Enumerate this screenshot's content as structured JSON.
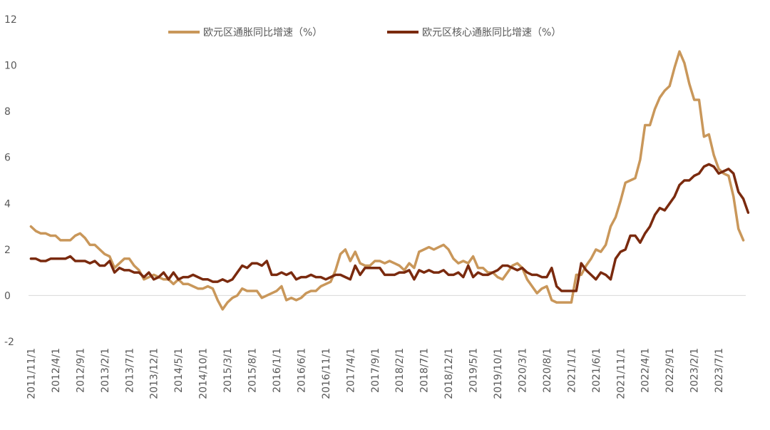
{
  "chart_data": {
    "type": "line",
    "title": "",
    "xlabel": "",
    "ylabel": "",
    "ylim": [
      -2,
      12
    ],
    "yticks": [
      -2,
      0,
      2,
      4,
      6,
      8,
      10,
      12
    ],
    "x_start": "2011/11",
    "x_tick_labels": [
      "2011/11/1",
      "2012/4/1",
      "2012/9/1",
      "2013/2/1",
      "2013/7/1",
      "2013/12/1",
      "2014/5/1",
      "2014/10/1",
      "2015/3/1",
      "2015/8/1",
      "2016/1/1",
      "2016/6/1",
      "2016/11/1",
      "2017/4/1",
      "2017/9/1",
      "2018/2/1",
      "2018/7/1",
      "2018/12/1",
      "2019/5/1",
      "2019/10/1",
      "2020/3/1",
      "2020/8/1",
      "2021/1/1",
      "2021/6/1",
      "2021/11/1",
      "2022/4/1",
      "2022/9/1",
      "2023/2/1",
      "2023/7/1"
    ],
    "legend_position": "top",
    "series": [
      {
        "name": "欧元区通胀同比增速（%）",
        "color": "#C9975A",
        "values": [
          3.0,
          2.8,
          2.7,
          2.7,
          2.6,
          2.6,
          2.4,
          2.4,
          2.4,
          2.6,
          2.7,
          2.5,
          2.2,
          2.2,
          2.0,
          1.8,
          1.7,
          1.2,
          1.4,
          1.6,
          1.6,
          1.3,
          1.1,
          0.7,
          0.8,
          0.9,
          0.8,
          0.7,
          0.7,
          0.5,
          0.7,
          0.5,
          0.5,
          0.4,
          0.3,
          0.3,
          0.4,
          0.3,
          -0.2,
          -0.6,
          -0.3,
          -0.1,
          0.0,
          0.3,
          0.2,
          0.2,
          0.2,
          -0.1,
          0.0,
          0.1,
          0.2,
          0.4,
          -0.2,
          -0.1,
          -0.2,
          -0.1,
          0.1,
          0.2,
          0.2,
          0.4,
          0.5,
          0.6,
          1.1,
          1.8,
          2.0,
          1.5,
          1.9,
          1.4,
          1.3,
          1.3,
          1.5,
          1.5,
          1.4,
          1.5,
          1.4,
          1.3,
          1.1,
          1.4,
          1.2,
          1.9,
          2.0,
          2.1,
          2.0,
          2.1,
          2.2,
          2.0,
          1.6,
          1.4,
          1.5,
          1.4,
          1.7,
          1.2,
          1.2,
          1.0,
          1.0,
          0.8,
          0.7,
          1.0,
          1.3,
          1.4,
          1.2,
          0.7,
          0.4,
          0.1,
          0.3,
          0.4,
          -0.2,
          -0.3,
          -0.3,
          -0.3,
          -0.3,
          0.9,
          0.9,
          1.3,
          1.6,
          2.0,
          1.9,
          2.2,
          3.0,
          3.4,
          4.1,
          4.9,
          5.0,
          5.1,
          5.9,
          7.4,
          7.4,
          8.1,
          8.6,
          8.9,
          9.1,
          9.9,
          10.6,
          10.1,
          9.2,
          8.5,
          8.5,
          6.9,
          7.0,
          6.1,
          5.5,
          5.3,
          5.2,
          4.3,
          2.9,
          2.4
        ]
      },
      {
        "name": "欧元区核心通胀同比增速（%）",
        "color": "#7A2A0E",
        "values": [
          1.6,
          1.6,
          1.5,
          1.5,
          1.6,
          1.6,
          1.6,
          1.6,
          1.7,
          1.5,
          1.5,
          1.5,
          1.4,
          1.5,
          1.3,
          1.3,
          1.5,
          1.0,
          1.2,
          1.1,
          1.1,
          1.0,
          1.0,
          0.8,
          1.0,
          0.7,
          0.8,
          1.0,
          0.7,
          1.0,
          0.7,
          0.8,
          0.8,
          0.9,
          0.8,
          0.7,
          0.7,
          0.6,
          0.6,
          0.7,
          0.6,
          0.7,
          1.0,
          1.3,
          1.2,
          1.4,
          1.4,
          1.3,
          1.5,
          0.9,
          0.9,
          1.0,
          0.9,
          1.0,
          0.7,
          0.8,
          0.8,
          0.9,
          0.8,
          0.8,
          0.7,
          0.8,
          0.9,
          0.9,
          0.8,
          0.7,
          1.3,
          0.9,
          1.2,
          1.2,
          1.2,
          1.2,
          0.9,
          0.9,
          0.9,
          1.0,
          1.0,
          1.1,
          0.7,
          1.1,
          1.0,
          1.1,
          1.0,
          1.0,
          1.1,
          0.9,
          0.9,
          1.0,
          0.8,
          1.3,
          0.8,
          1.0,
          0.9,
          0.9,
          1.0,
          1.1,
          1.3,
          1.3,
          1.2,
          1.1,
          1.2,
          1.0,
          0.9,
          0.9,
          0.8,
          0.8,
          1.2,
          0.4,
          0.2,
          0.2,
          0.2,
          0.2,
          1.4,
          1.1,
          0.9,
          0.7,
          1.0,
          0.9,
          0.7,
          1.6,
          1.9,
          2.0,
          2.6,
          2.6,
          2.3,
          2.7,
          3.0,
          3.5,
          3.8,
          3.7,
          4.0,
          4.3,
          4.8,
          5.0,
          5.0,
          5.2,
          5.3,
          5.6,
          5.7,
          5.6,
          5.3,
          5.4,
          5.5,
          5.3,
          4.5,
          4.2,
          3.6
        ]
      }
    ]
  }
}
